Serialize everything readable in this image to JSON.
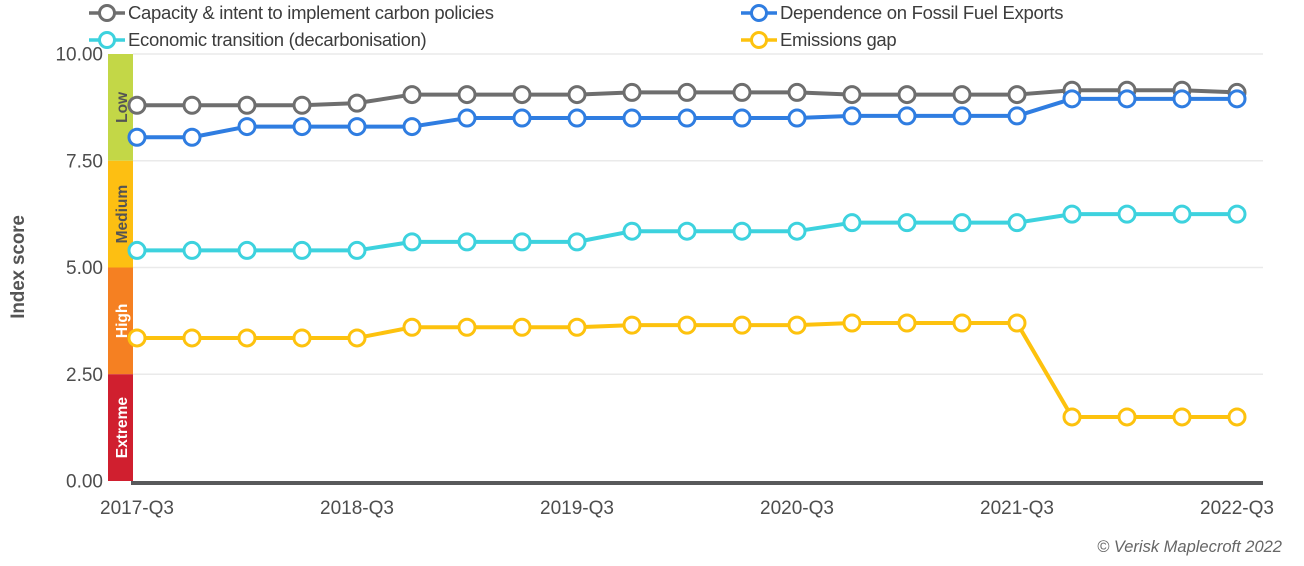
{
  "y_axis": {
    "title": "Index score",
    "ticks": [
      {
        "value": 10,
        "label": "10.00"
      },
      {
        "value": 7.5,
        "label": "7.50"
      },
      {
        "value": 5,
        "label": "5.00"
      },
      {
        "value": 2.5,
        "label": "2.50"
      },
      {
        "value": 0,
        "label": "0.00"
      }
    ]
  },
  "footer": {
    "copyright": "© Verisk Maplecroft 2022"
  },
  "chart_data": {
    "type": "line",
    "title": "",
    "xlabel": "",
    "ylabel": "Index score",
    "ylim": [
      0,
      10
    ],
    "grid": true,
    "legend_position": "top",
    "x": [
      "2017-Q3",
      "2017-Q4",
      "2018-Q1",
      "2018-Q2",
      "2018-Q3",
      "2018-Q4",
      "2019-Q1",
      "2019-Q2",
      "2019-Q3",
      "2019-Q4",
      "2020-Q1",
      "2020-Q2",
      "2020-Q3",
      "2020-Q4",
      "2021-Q1",
      "2021-Q2",
      "2021-Q3",
      "2021-Q4",
      "2022-Q1",
      "2022-Q2",
      "2022-Q3"
    ],
    "x_tick_labels": [
      "2017-Q3",
      "2018-Q3",
      "2019-Q3",
      "2020-Q3",
      "2021-Q3",
      "2022-Q3"
    ],
    "bands": [
      {
        "label": "Low",
        "range": [
          7.5,
          10
        ],
        "color": "#c3d747",
        "text_color": "#545454"
      },
      {
        "label": "Medium",
        "range": [
          5,
          7.5
        ],
        "color": "#fdbf12",
        "text_color": "#545454"
      },
      {
        "label": "High",
        "range": [
          2.5,
          5
        ],
        "color": "#f58022",
        "text_color": "#ffffff"
      },
      {
        "label": "Extreme",
        "range": [
          0,
          2.5
        ],
        "color": "#d01f2f",
        "text_color": "#ffffff"
      }
    ],
    "series": [
      {
        "name": "Capacity & intent to implement carbon policies",
        "color": "#6e6e6e",
        "values": [
          8.8,
          8.8,
          8.8,
          8.8,
          8.85,
          9.05,
          9.05,
          9.05,
          9.05,
          9.1,
          9.1,
          9.1,
          9.1,
          9.05,
          9.05,
          9.05,
          9.05,
          9.15,
          9.15,
          9.15,
          9.1
        ]
      },
      {
        "name": "Dependence on Fossil Fuel Exports",
        "color": "#2f7de1",
        "values": [
          8.05,
          8.05,
          8.3,
          8.3,
          8.3,
          8.3,
          8.5,
          8.5,
          8.5,
          8.5,
          8.5,
          8.5,
          8.5,
          8.55,
          8.55,
          8.55,
          8.55,
          8.95,
          8.95,
          8.95,
          8.95
        ]
      },
      {
        "name": "Economic transition (decarbonisation)",
        "color": "#3dd2de",
        "values": [
          5.4,
          5.4,
          5.4,
          5.4,
          5.4,
          5.6,
          5.6,
          5.6,
          5.6,
          5.85,
          5.85,
          5.85,
          5.85,
          6.05,
          6.05,
          6.05,
          6.05,
          6.25,
          6.25,
          6.25,
          6.25
        ]
      },
      {
        "name": "Emissions gap",
        "color": "#fdc20e",
        "values": [
          3.35,
          3.35,
          3.35,
          3.35,
          3.35,
          3.6,
          3.6,
          3.6,
          3.6,
          3.65,
          3.65,
          3.65,
          3.65,
          3.7,
          3.7,
          3.7,
          3.7,
          1.5,
          1.5,
          1.5,
          1.5
        ]
      }
    ],
    "axis_colors": {
      "gridline": "#eaeaea",
      "axis_line": "#58595b",
      "tick_text": "#4d4d4d"
    }
  }
}
